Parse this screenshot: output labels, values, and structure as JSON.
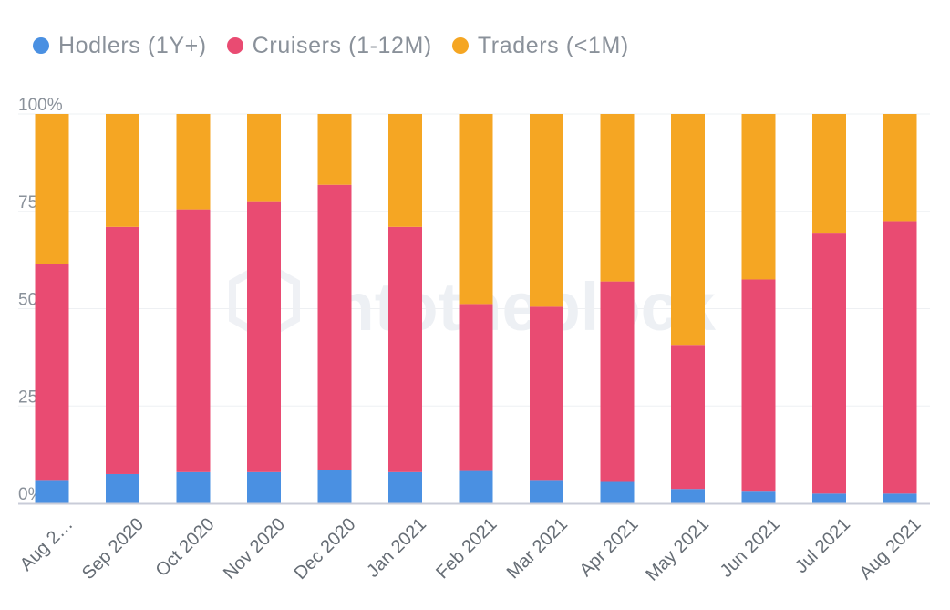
{
  "chart_data": {
    "type": "bar",
    "stacked": true,
    "normalized": true,
    "categories": [
      "Aug 2…",
      "Sep 2020",
      "Oct 2020",
      "Nov 2020",
      "Dec 2020",
      "Jan 2021",
      "Feb 2021",
      "Mar 2021",
      "Apr 2021",
      "May 2021",
      "Jun 2021",
      "Jul 2021",
      "Aug 2021"
    ],
    "series": [
      {
        "name": "Hodlers (1Y+)",
        "color": "#4a90e2",
        "values": [
          6,
          7.5,
          8,
          8,
          8.5,
          8,
          8.3,
          6,
          5.5,
          3.7,
          3,
          2.5,
          2.5
        ]
      },
      {
        "name": "Cruisers (1-12M)",
        "color": "#e94b72",
        "values": [
          55.5,
          63.5,
          67.5,
          69.6,
          73.3,
          63,
          42.9,
          44.5,
          51.5,
          37,
          54.5,
          66.8,
          70
        ]
      },
      {
        "name": "Traders (<1M)",
        "color": "#f5a623",
        "values": [
          38.5,
          29,
          24.5,
          22.4,
          18.2,
          29,
          48.8,
          49.5,
          43,
          59.3,
          42.5,
          30.7,
          27.5
        ]
      }
    ],
    "y_ticks": [
      "0%",
      "25%",
      "50%",
      "75%",
      "100%"
    ],
    "ylim": [
      0,
      100
    ],
    "xlabel": "",
    "ylabel": "",
    "legend_position": "top-left",
    "grid": true
  },
  "watermark": "intotheblock"
}
